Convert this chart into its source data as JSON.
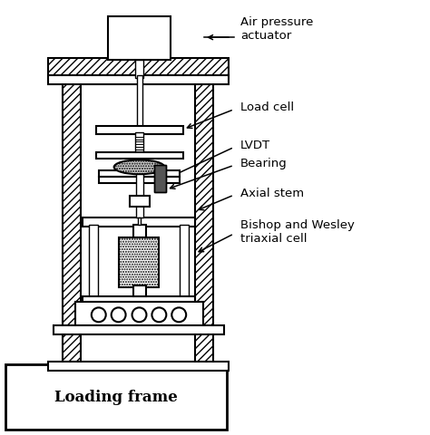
{
  "background_color": "#ffffff",
  "line_color": "#000000",
  "labels": {
    "air_pressure": "Air pressure\nactuator",
    "load_cell": "Load cell",
    "lvdt": "LVDT",
    "bearing": "Bearing",
    "axial_stem": "Axial stem",
    "bishop_wesley": "Bishop and Wesley\ntriaxial cell",
    "loading_frame": "Loading frame"
  },
  "figsize": [
    4.74,
    4.81
  ],
  "dpi": 100
}
